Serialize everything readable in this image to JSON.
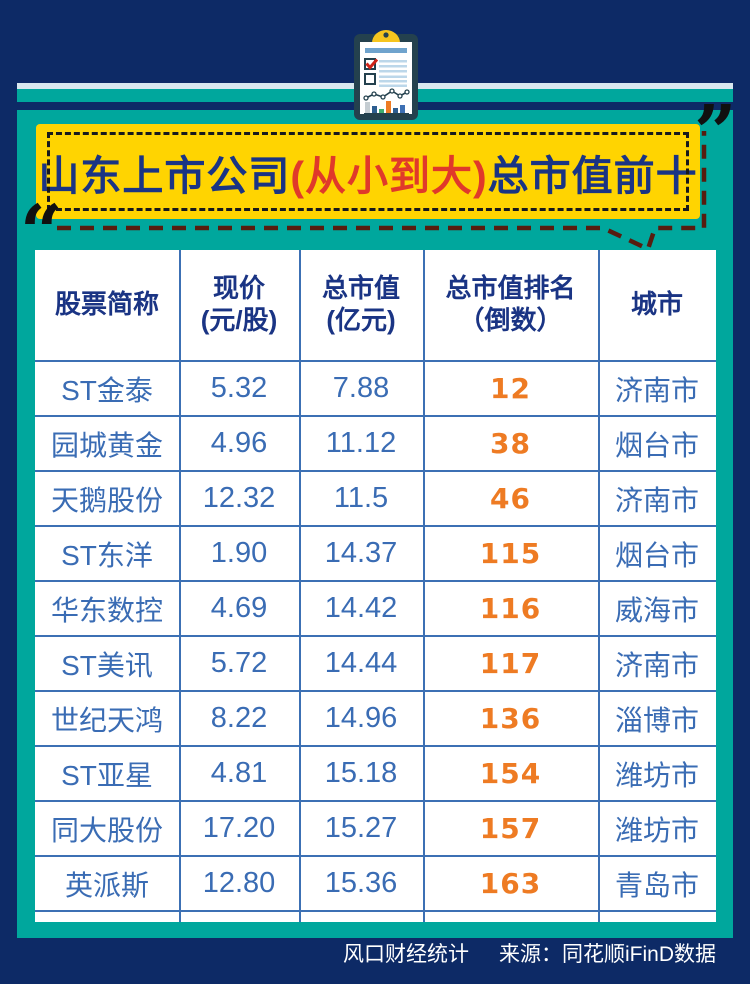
{
  "colors": {
    "background_navy": "#0d2a66",
    "panel_teal": "#00a79d",
    "banner_yellow": "#ffd401",
    "title_navy": "#1a3484",
    "title_red": "#e0392a",
    "table_text_blue": "#3a6cb4",
    "rank_orange": "#ee7b23",
    "grid_line_blue": "#3c70b4",
    "dashed_border_black": "#17191d",
    "dashed_shadow_maroon": "#571c0f",
    "footer_white": "#ffffff"
  },
  "title": {
    "part1": "山东上市公司",
    "highlight": "(从小到大)",
    "part2": "总市值前十"
  },
  "decor": {
    "quote_open": "“",
    "quote_close": "”",
    "clipboard_icon": "clipboard-checklist-chart"
  },
  "table": {
    "headers": [
      {
        "line1": "股票简称",
        "line2": ""
      },
      {
        "line1": "现价",
        "line2": "(元/股)"
      },
      {
        "line1": "总市值",
        "line2": "(亿元)"
      },
      {
        "line1": "总市值排名",
        "line2": "（倒数）"
      },
      {
        "line1": "城市",
        "line2": ""
      }
    ]
  },
  "chart_data": {
    "type": "table",
    "title": "山东上市公司(从小到大)总市值前十",
    "columns": [
      "股票简称",
      "现价(元/股)",
      "总市值(亿元)",
      "总市值排名（倒数）",
      "城市"
    ],
    "rows": [
      {
        "name": "ST金泰",
        "price": "5.32",
        "cap": "7.88",
        "rank": "12",
        "city": "济南市"
      },
      {
        "name": "园城黄金",
        "price": "4.96",
        "cap": "11.12",
        "rank": "38",
        "city": "烟台市"
      },
      {
        "name": "天鹅股份",
        "price": "12.32",
        "cap": "11.5",
        "rank": "46",
        "city": "济南市"
      },
      {
        "name": "ST东洋",
        "price": "1.90",
        "cap": "14.37",
        "rank": "115",
        "city": "烟台市"
      },
      {
        "name": "华东数控",
        "price": "4.69",
        "cap": "14.42",
        "rank": "116",
        "city": "威海市"
      },
      {
        "name": "ST美讯",
        "price": "5.72",
        "cap": "14.44",
        "rank": "117",
        "city": "济南市"
      },
      {
        "name": "世纪天鸿",
        "price": "8.22",
        "cap": "14.96",
        "rank": "136",
        "city": "淄博市"
      },
      {
        "name": "ST亚星",
        "price": "4.81",
        "cap": "15.18",
        "rank": "154",
        "city": "潍坊市"
      },
      {
        "name": "同大股份",
        "price": "17.20",
        "cap": "15.27",
        "rank": "157",
        "city": "潍坊市"
      },
      {
        "name": "英派斯",
        "price": "12.80",
        "cap": "15.36",
        "rank": "163",
        "city": "青岛市"
      }
    ]
  },
  "footer": {
    "credit": "风口财经统计",
    "source": "来源：同花顺iFinD数据"
  }
}
